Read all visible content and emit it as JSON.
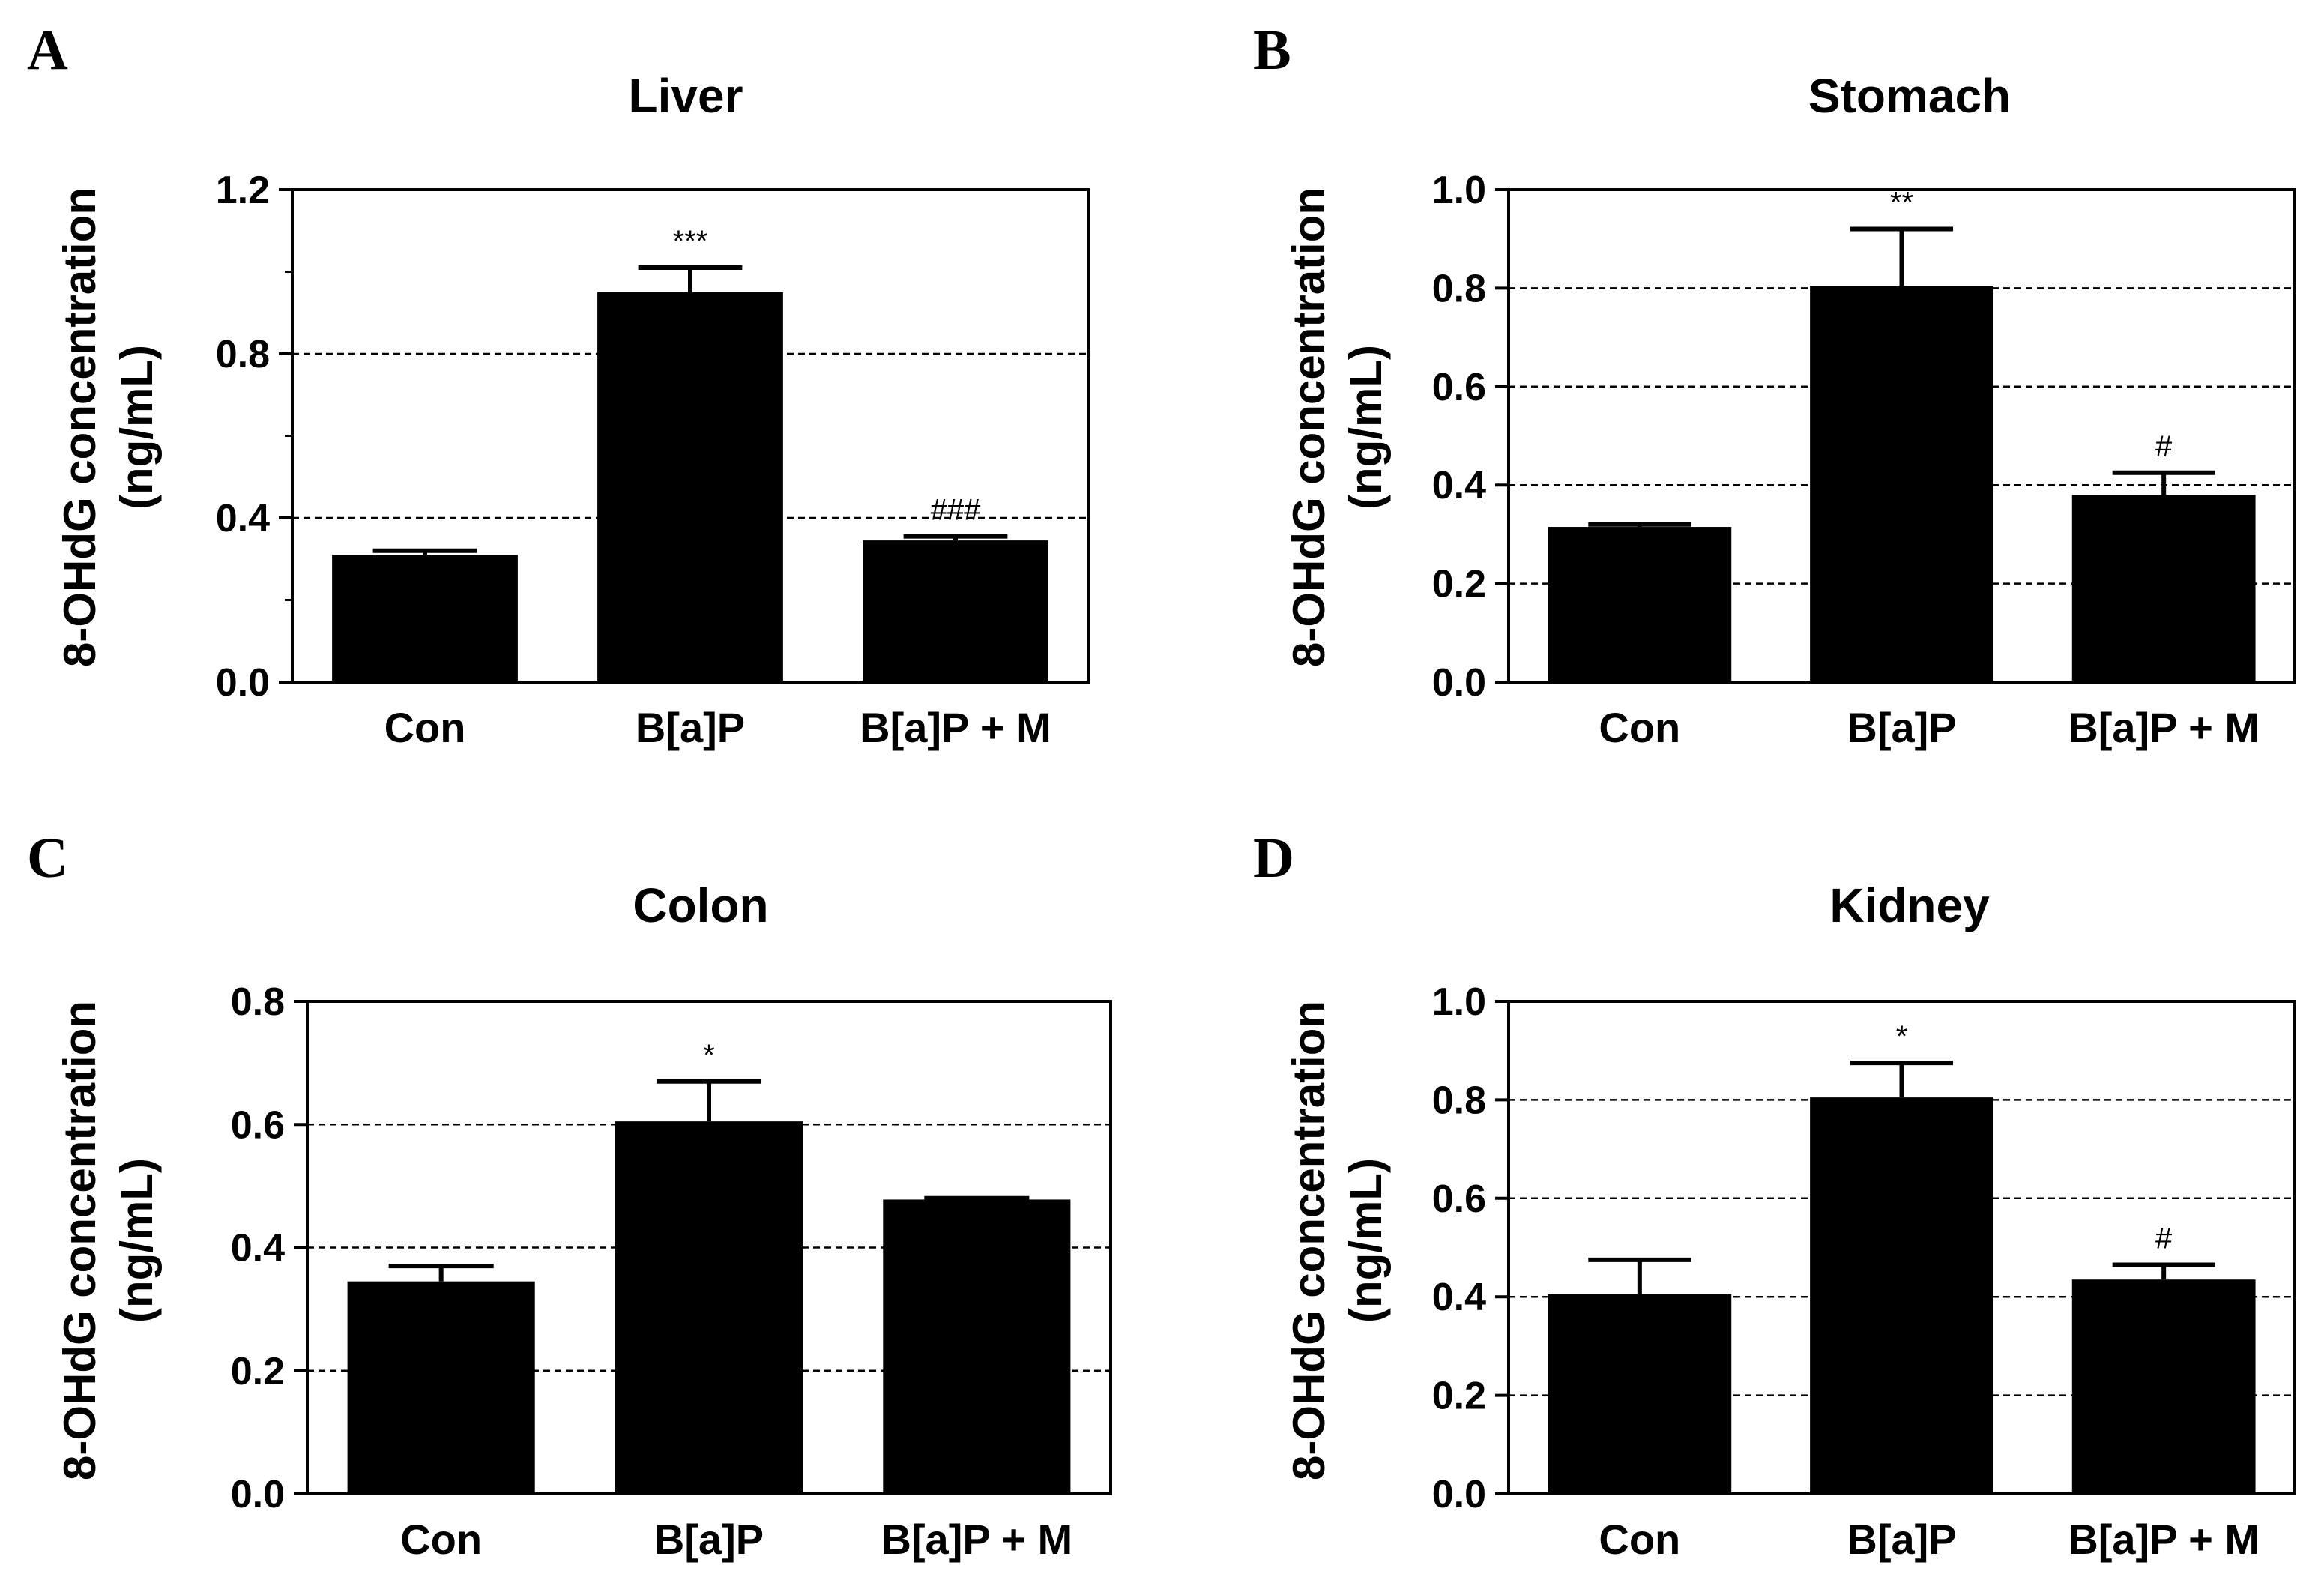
{
  "chart_data": [
    {
      "panel": "A",
      "type": "bar",
      "title": "Liver",
      "ylabel_line1": "8-OHdG concentration",
      "ylabel_line2": "(ng/mL)",
      "categories": [
        "Con",
        "B[a]P",
        "B[a]P + M"
      ],
      "values": [
        0.31,
        0.95,
        0.345
      ],
      "errors": [
        0.01,
        0.06,
        0.01
      ],
      "significance": [
        "",
        "***",
        "###"
      ],
      "ylim": [
        0,
        1.2
      ],
      "yticks": [
        "0.0",
        "0.4",
        "0.8",
        "1.2"
      ],
      "minor_step": 0.2,
      "gridlines": [
        0.4,
        0.8
      ]
    },
    {
      "panel": "B",
      "type": "bar",
      "title": "Stomach",
      "ylabel_line1": "8-OHdG concentration",
      "ylabel_line2": "(ng/mL)",
      "categories": [
        "Con",
        "B[a]P",
        "B[a]P + M"
      ],
      "values": [
        0.315,
        0.805,
        0.38
      ],
      "errors": [
        0.005,
        0.115,
        0.045
      ],
      "significance": [
        "",
        "**",
        "#"
      ],
      "ylim": [
        0,
        1.0
      ],
      "yticks": [
        "0.0",
        "0.2",
        "0.4",
        "0.6",
        "0.8",
        "1.0"
      ],
      "minor_step": null,
      "gridlines": [
        0.2,
        0.4,
        0.6,
        0.8
      ]
    },
    {
      "panel": "C",
      "type": "bar",
      "title": "Colon",
      "ylabel_line1": "8-OHdG concentration",
      "ylabel_line2": "(ng/mL)",
      "categories": [
        "Con",
        "B[a]P",
        "B[a]P + M"
      ],
      "values": [
        0.345,
        0.605,
        0.478
      ],
      "errors": [
        0.025,
        0.065,
        0.002
      ],
      "significance": [
        "",
        "*",
        ""
      ],
      "ylim": [
        0,
        0.8
      ],
      "yticks": [
        "0.0",
        "0.2",
        "0.4",
        "0.6",
        "0.8"
      ],
      "minor_step": null,
      "gridlines": [
        0.2,
        0.4,
        0.6
      ]
    },
    {
      "panel": "D",
      "type": "bar",
      "title": "Kidney",
      "ylabel_line1": "8-OHdG concentration",
      "ylabel_line2": "(ng/mL)",
      "categories": [
        "Con",
        "B[a]P",
        "B[a]P + M"
      ],
      "values": [
        0.405,
        0.805,
        0.435
      ],
      "errors": [
        0.07,
        0.07,
        0.03
      ],
      "significance": [
        "",
        "*",
        "#"
      ],
      "ylim": [
        0,
        1.0
      ],
      "yticks": [
        "0.0",
        "0.2",
        "0.4",
        "0.6",
        "0.8",
        "1.0"
      ],
      "minor_step": null,
      "gridlines": [
        0.2,
        0.4,
        0.6,
        0.8
      ]
    }
  ],
  "colors": {
    "bar": "#000000",
    "axis": "#000000",
    "grid": "#000000",
    "background": "#ffffff"
  }
}
